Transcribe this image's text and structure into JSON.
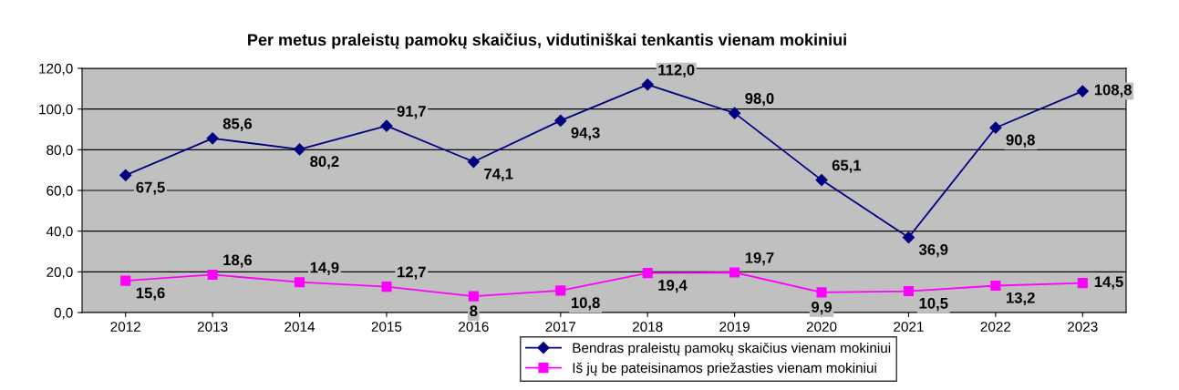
{
  "chart_data": {
    "type": "line",
    "title": "Per metus praleistų pamokų skaičius, vidutiniškai tenkantis vienam mokiniui",
    "categories": [
      "2012",
      "2013",
      "2014",
      "2015",
      "2016",
      "2017",
      "2018",
      "2019",
      "2020",
      "2021",
      "2022",
      "2023"
    ],
    "series": [
      {
        "name": "Bendras praleistų pamokų skaičius vienam mokiniui",
        "color": "#000080",
        "marker": "diamond",
        "values": [
          67.5,
          85.6,
          80.2,
          91.7,
          74.1,
          94.3,
          112.0,
          98.0,
          65.1,
          36.9,
          90.8,
          108.8
        ],
        "value_labels": [
          "67,5",
          "85,6",
          "80,2",
          "91,7",
          "74,1",
          "94,3",
          "112,0",
          "98,0",
          "65,1",
          "36,9",
          "90,8",
          "108,8"
        ]
      },
      {
        "name": "Iš jų be pateisinamos priežasties vienam mokiniui",
        "color": "#ff00ff",
        "marker": "square",
        "values": [
          15.6,
          18.6,
          14.9,
          12.7,
          8,
          10.8,
          19.4,
          19.7,
          9.9,
          10.5,
          13.2,
          14.5
        ],
        "value_labels": [
          "15,6",
          "18,6",
          "14,9",
          "12,7",
          "8",
          "10,8",
          "19,4",
          "19,7",
          "9,9",
          "10,5",
          "13,2",
          "14,5"
        ]
      }
    ],
    "ylim": [
      0,
      120
    ],
    "yticks": [
      {
        "value": 0,
        "label": "0,0"
      },
      {
        "value": 20,
        "label": "20,0"
      },
      {
        "value": 40,
        "label": "40,0"
      },
      {
        "value": 60,
        "label": "60,0"
      },
      {
        "value": 80,
        "label": "80,0"
      },
      {
        "value": 100,
        "label": "100,0"
      },
      {
        "value": 120,
        "label": "120,0"
      }
    ],
    "grid": "y",
    "legend": "bottom",
    "line_style": "solid"
  }
}
